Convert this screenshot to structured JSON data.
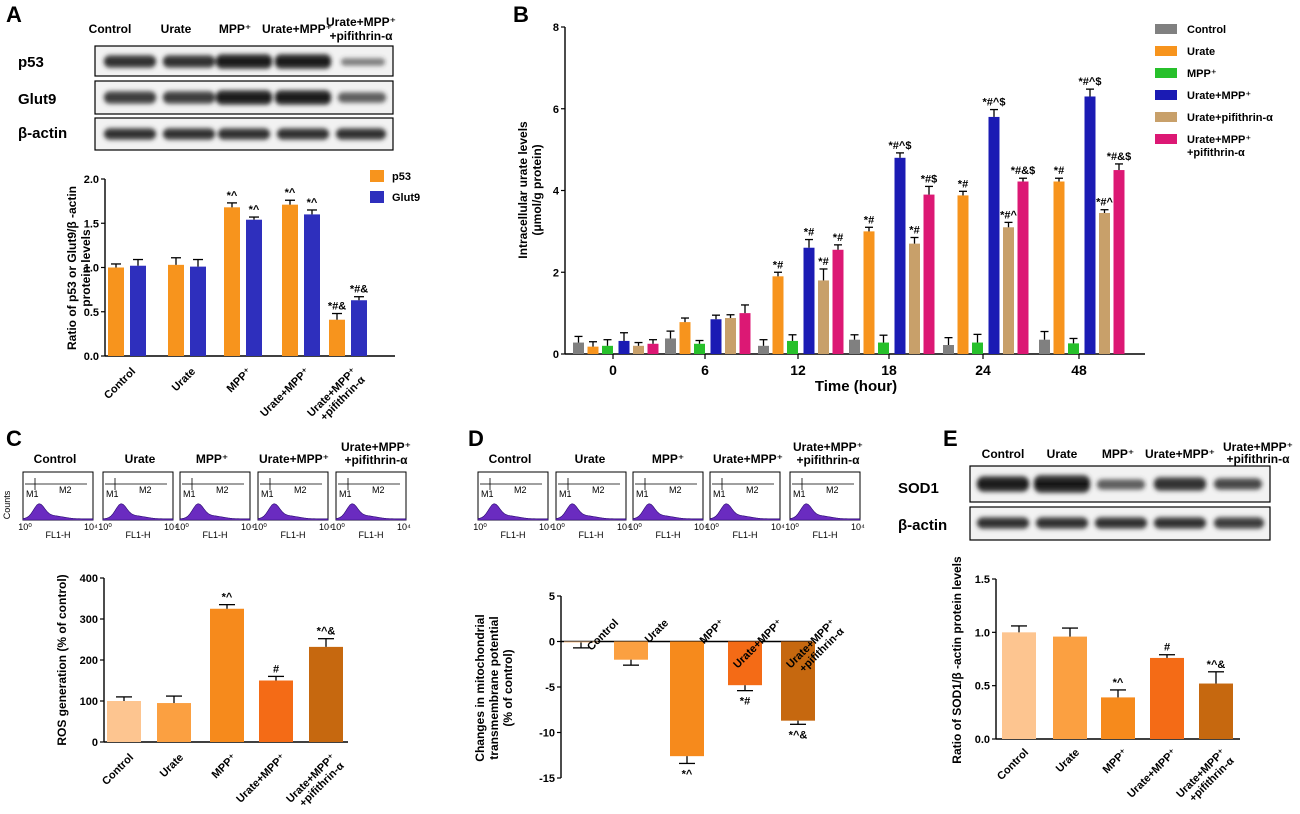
{
  "colors": {
    "control_light": "#fdc590",
    "urate": "#fba041",
    "mpp": "#f68a1c",
    "urate_mpp": "#f46b16",
    "urate_mpp_pif": "#c6680f",
    "p53": "#f7941d",
    "glut9": "#2e2fbd",
    "B": [
      "#808080",
      "#f7941d",
      "#27c02b",
      "#1b1bb4",
      "#c8a06a",
      "#dc1874"
    ]
  },
  "panels": {
    "A": {
      "label": "A",
      "lanes": [
        "Control",
        "Urate",
        "MPP⁺",
        "Urate+MPP⁺",
        "Urate+MPP⁺",
        "+pifithrin-α"
      ],
      "blots": [
        "p53",
        "Glut9",
        "β-actin"
      ]
    },
    "B": {
      "label": "B"
    },
    "C": {
      "label": "C",
      "flow": [
        "Control",
        "Urate",
        "MPP⁺",
        "Urate+MPP⁺",
        "Urate+MPP⁺",
        "+pifithrin-α"
      ],
      "gate1": "M1",
      "gate2": "M2",
      "xlabel": "FL1-H",
      "ylabel": "Counts"
    },
    "D": {
      "label": "D",
      "flow": [
        "Control",
        "Urate",
        "MPP⁺",
        "Urate+MPP⁺",
        "Urate+MPP⁺",
        "+pifithrin-α"
      ],
      "gate1": "M1",
      "gate2": "M2",
      "xlabel": "FL1-H"
    },
    "E": {
      "label": "E",
      "lanes": [
        "Control",
        "Urate",
        "MPP⁺",
        "Urate+MPP⁺",
        "Urate+MPP⁺",
        "+pifithrin-α"
      ],
      "blots": [
        "SOD1",
        "β-actin"
      ]
    }
  },
  "chart_data": [
    {
      "id": "A",
      "type": "bar",
      "categories": [
        "Control",
        "Urate",
        "MPP⁺",
        "Urate+MPP⁺",
        "Urate+MPP⁺\n+pifithrin-α"
      ],
      "series": [
        {
          "name": "p53",
          "values": [
            1.0,
            1.03,
            1.68,
            1.71,
            0.41
          ],
          "errors": [
            0.04,
            0.08,
            0.05,
            0.05,
            0.07
          ],
          "annotations": [
            "",
            "",
            "*^",
            "*^",
            "*#&"
          ]
        },
        {
          "name": "Glut9",
          "values": [
            1.02,
            1.01,
            1.54,
            1.6,
            0.63
          ],
          "errors": [
            0.07,
            0.08,
            0.03,
            0.05,
            0.04
          ],
          "annotations": [
            "",
            "",
            "*^",
            "*^",
            "*#&"
          ]
        }
      ],
      "title": "",
      "xlabel": "",
      "ylabel": "Ratio of p53 or Glut9/β -actin protein levels",
      "ylim": [
        0,
        2.0
      ],
      "yticks": [
        "0.0",
        "0.5",
        "1.0",
        "1.5",
        "2.0"
      ]
    },
    {
      "id": "B",
      "type": "bar",
      "categories": [
        "0",
        "6",
        "12",
        "18",
        "24",
        "48"
      ],
      "series": [
        {
          "name": "Control",
          "values": [
            0.28,
            0.38,
            0.2,
            0.35,
            0.22,
            0.35
          ],
          "errors": [
            0.15,
            0.18,
            0.15,
            0.12,
            0.18,
            0.2
          ],
          "annotations": [
            "",
            "",
            "",
            "",
            "",
            ""
          ]
        },
        {
          "name": "Urate",
          "values": [
            0.18,
            0.78,
            1.9,
            3.0,
            3.88,
            4.22
          ],
          "errors": [
            0.12,
            0.1,
            0.1,
            0.1,
            0.1,
            0.08
          ],
          "annotations": [
            "",
            "",
            "*#",
            "*#",
            "*#",
            "*#"
          ]
        },
        {
          "name": "MPP⁺",
          "values": [
            0.2,
            0.25,
            0.32,
            0.28,
            0.28,
            0.26
          ],
          "errors": [
            0.15,
            0.08,
            0.15,
            0.18,
            0.2,
            0.12
          ],
          "annotations": [
            "",
            "",
            "",
            "",
            "",
            ""
          ]
        },
        {
          "name": "Urate+MPP⁺",
          "values": [
            0.32,
            0.85,
            2.6,
            4.8,
            5.8,
            6.3
          ],
          "errors": [
            0.2,
            0.1,
            0.2,
            0.12,
            0.18,
            0.18
          ],
          "annotations": [
            "",
            "",
            "*#",
            "*#^$",
            "*#^$",
            "*#^$"
          ]
        },
        {
          "name": "Urate+pifithrin-α",
          "values": [
            0.2,
            0.88,
            1.8,
            2.7,
            3.1,
            3.45
          ],
          "errors": [
            0.08,
            0.08,
            0.28,
            0.15,
            0.12,
            0.08
          ],
          "annotations": [
            "",
            "",
            "*#",
            "*#",
            "*#^",
            "*#^"
          ]
        },
        {
          "name": "Urate+MPP⁺\n+pifithrin-α",
          "values": [
            0.25,
            1.0,
            2.55,
            3.9,
            4.22,
            4.5
          ],
          "errors": [
            0.1,
            0.2,
            0.12,
            0.2,
            0.08,
            0.15
          ],
          "annotations": [
            "",
            "",
            "*#",
            "*#$",
            "*#&$",
            "*#&$"
          ]
        }
      ],
      "title": "",
      "xlabel": "Time (hour)",
      "ylabel": "Intracellular urate levels (μmol/g protein)",
      "ylim": [
        0,
        8
      ],
      "yticks": [
        "0",
        "2",
        "4",
        "6",
        "8"
      ]
    },
    {
      "id": "C",
      "type": "bar",
      "categories": [
        "Control",
        "Urate",
        "MPP⁺",
        "Urate+MPP⁺",
        "Urate+MPP⁺\n+pifithrin-α"
      ],
      "values": [
        100,
        95,
        325,
        150,
        232
      ],
      "errors": [
        10,
        17,
        10,
        10,
        20
      ],
      "annotations": [
        "",
        "",
        "*^",
        "#",
        "*^&"
      ],
      "title": "",
      "xlabel": "",
      "ylabel": "ROS generation (% of control)",
      "ylim": [
        0,
        400
      ],
      "yticks": [
        "0",
        "100",
        "200",
        "300",
        "400"
      ]
    },
    {
      "id": "D",
      "type": "bar",
      "categories": [
        "Control",
        "Urate",
        "MPP⁺",
        "Urate+MPP⁺",
        "Urate+MPP⁺\n+pifithrin-α"
      ],
      "values": [
        -0.1,
        -2.0,
        -12.6,
        -4.8,
        -8.7
      ],
      "errors": [
        0.6,
        0.6,
        0.8,
        0.6,
        0.4
      ],
      "annotations": [
        "",
        "",
        "*^",
        "*#",
        "*^&"
      ],
      "title": "",
      "xlabel": "",
      "ylabel": "Changes in mitochondrial transmembrane potential (% of control)",
      "ylim": [
        -15,
        5
      ],
      "yticks": [
        "5",
        "0",
        "-5",
        "-10",
        "-15"
      ]
    },
    {
      "id": "E",
      "type": "bar",
      "categories": [
        "Control",
        "Urate",
        "MPP⁺",
        "Urate+MPP⁺",
        "Urate+MPP⁺\n+pifithrin-α"
      ],
      "values": [
        1.0,
        0.96,
        0.39,
        0.76,
        0.52
      ],
      "errors": [
        0.06,
        0.08,
        0.07,
        0.03,
        0.11
      ],
      "annotations": [
        "",
        "",
        "*^",
        "#",
        "*^&"
      ],
      "title": "",
      "xlabel": "",
      "ylabel": "Ratio of SOD1/β -actin protein levels",
      "ylim": [
        0,
        1.5
      ],
      "yticks": [
        "0.0",
        "0.5",
        "1.0",
        "1.5"
      ]
    }
  ]
}
